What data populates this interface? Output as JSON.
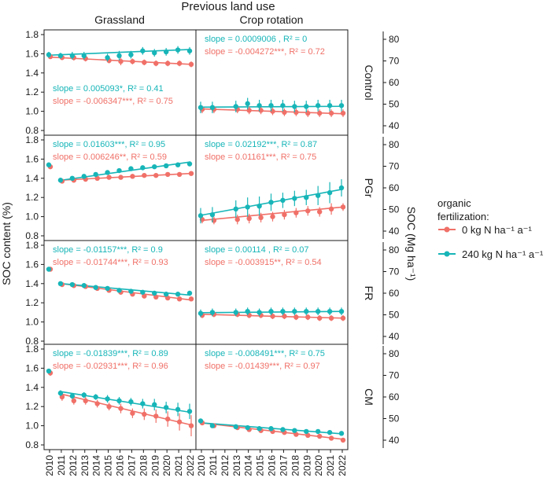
{
  "chart_data": {
    "type": "line",
    "title": "Previous land use",
    "columns": [
      "Grassland",
      "Crop rotation"
    ],
    "rows": [
      "Control",
      "PGr",
      "FR",
      "CM"
    ],
    "x": [
      2010,
      2011,
      2012,
      2013,
      2014,
      2015,
      2016,
      2017,
      2018,
      2019,
      2020,
      2021,
      2022
    ],
    "xticks": [
      "2010",
      "2011",
      "2012",
      "2013",
      "2014",
      "2015",
      "2016",
      "2017",
      "2018",
      "2019",
      "2020",
      "2021",
      "2022"
    ],
    "ylabel_left": "SOC content (%)",
    "ylabel_right": "SOC (Mg ha⁻¹)",
    "ylim": [
      0.8,
      1.8
    ],
    "yticks": [
      "0.8",
      "1.0",
      "1.2",
      "1.4",
      "1.6",
      "1.8"
    ],
    "yticks_right": [
      "40",
      "50",
      "60",
      "70",
      "80"
    ],
    "colors": {
      "n0": "#f07068",
      "n240": "#17b5b8"
    },
    "legend": {
      "title_line1": "organic",
      "title_line2": "fertilization:",
      "items": [
        "0 kg N ha⁻¹ a⁻¹",
        "240 kg N ha⁻¹ a⁻¹"
      ]
    },
    "panels": [
      {
        "row": "Control",
        "col": "Grassland",
        "ann_teal": "slope = 0.005093*, R² = 0.41",
        "ann_red": "slope = -0.006347***, R² = 0.75",
        "teal": [
          1.59,
          1.58,
          1.58,
          1.58,
          null,
          1.56,
          1.58,
          1.59,
          1.63,
          1.61,
          1.62,
          1.64,
          1.63
        ],
        "teal_err": [
          0.03,
          0.03,
          0.04,
          0.04,
          0,
          0.04,
          0.05,
          0.04,
          0.04,
          0.04,
          0.04,
          0.04,
          0.04
        ],
        "red": [
          1.57,
          1.56,
          1.56,
          1.55,
          null,
          1.53,
          1.52,
          1.52,
          1.51,
          1.5,
          1.5,
          1.5,
          1.49
        ],
        "red_err": [
          0.02,
          0.02,
          0.03,
          0.03,
          0,
          0.03,
          0.04,
          0.03,
          0.03,
          0.03,
          0.03,
          0.03,
          0.03
        ],
        "fit_teal": [
          1.585,
          1.645
        ],
        "fit_red": [
          1.565,
          1.49
        ]
      },
      {
        "row": "Control",
        "col": "Crop rotation",
        "ann_teal": "slope = 0.0009006 , R² = 0",
        "ann_red": "slope = -0.004272***, R² = 0.72",
        "teal": [
          1.04,
          1.04,
          null,
          1.05,
          1.08,
          1.06,
          1.06,
          1.06,
          1.05,
          1.05,
          1.06,
          1.06,
          1.06
        ],
        "teal_err": [
          0.06,
          0.06,
          0,
          0.06,
          0.06,
          0.06,
          0.06,
          0.06,
          0.06,
          0.06,
          0.06,
          0.06,
          0.06
        ],
        "red": [
          1.02,
          1.02,
          null,
          1.02,
          1.01,
          1.01,
          1.0,
          0.99,
          0.99,
          0.98,
          0.98,
          0.98,
          0.98
        ],
        "red_err": [
          0.04,
          0.04,
          0,
          0.04,
          0.04,
          0.04,
          0.04,
          0.04,
          0.04,
          0.04,
          0.04,
          0.04,
          0.04
        ],
        "fit_teal": [
          1.043,
          1.052
        ],
        "fit_red": [
          1.025,
          0.975
        ]
      },
      {
        "row": "PGr",
        "col": "Grassland",
        "ann_teal": "slope = 0.01603***, R² = 0.95",
        "ann_red": "slope = 0.006246**, R² = 0.59",
        "teal": [
          1.54,
          1.38,
          1.4,
          1.42,
          1.44,
          1.46,
          1.48,
          1.5,
          1.51,
          1.52,
          1.53,
          1.54,
          1.55
        ],
        "teal_err": [
          0.02,
          0.02,
          0.02,
          0.02,
          0.02,
          0.02,
          0.02,
          0.02,
          0.02,
          0.02,
          0.02,
          0.02,
          0.02
        ],
        "red": [
          1.52,
          1.37,
          1.38,
          1.39,
          1.4,
          1.41,
          1.41,
          1.42,
          1.43,
          1.43,
          1.44,
          1.44,
          1.45
        ],
        "red_err": [
          0.02,
          0.02,
          0.02,
          0.02,
          0.02,
          0.02,
          0.02,
          0.02,
          0.02,
          0.02,
          0.02,
          0.02,
          0.02
        ],
        "fit_teal": [
          1.38,
          1.57
        ],
        "fit_red": [
          1.38,
          1.45
        ],
        "fit_start": 2011
      },
      {
        "row": "PGr",
        "col": "Crop rotation",
        "ann_teal": "slope = 0.02192***, R² = 0.87",
        "ann_red": "slope = 0.01161***, R² = 0.75",
        "teal": [
          1.01,
          1.02,
          null,
          1.08,
          1.1,
          1.11,
          1.15,
          1.17,
          1.19,
          1.2,
          1.22,
          1.25,
          1.3
        ],
        "teal_err": [
          0.08,
          0.08,
          0,
          0.09,
          0.1,
          0.1,
          0.09,
          0.08,
          0.08,
          0.08,
          0.1,
          0.11,
          0.09
        ],
        "red": [
          0.97,
          0.96,
          null,
          0.97,
          0.98,
          0.99,
          1.0,
          1.02,
          1.04,
          1.06,
          1.05,
          1.08,
          1.1
        ],
        "red_err": [
          0.04,
          0.04,
          0,
          0.05,
          0.05,
          0.05,
          0.05,
          0.05,
          0.05,
          0.05,
          0.05,
          0.06,
          0.04
        ],
        "fit_teal": [
          1.015,
          1.285
        ],
        "fit_red": [
          0.96,
          1.1
        ]
      },
      {
        "row": "FR",
        "col": "Grassland",
        "ann_teal": "slope = -0.01157***, R² = 0.9",
        "ann_red": "slope = -0.01744***, R² = 0.93",
        "teal": [
          1.55,
          1.4,
          1.39,
          1.38,
          1.36,
          1.35,
          1.33,
          1.32,
          1.31,
          1.3,
          1.29,
          1.29,
          1.3
        ],
        "teal_err": [
          0.02,
          0.02,
          0.02,
          0.02,
          0.02,
          0.02,
          0.02,
          0.02,
          0.02,
          0.02,
          0.02,
          0.02,
          0.02
        ],
        "red": [
          1.55,
          1.39,
          1.38,
          1.37,
          1.35,
          1.33,
          1.31,
          1.29,
          1.27,
          1.26,
          1.25,
          1.24,
          1.24
        ],
        "red_err": [
          0.02,
          0.02,
          0.02,
          0.02,
          0.02,
          0.02,
          0.02,
          0.02,
          0.02,
          0.02,
          0.02,
          0.02,
          0.02
        ],
        "fit_teal": [
          1.4,
          1.28
        ],
        "fit_red": [
          1.4,
          1.23
        ],
        "fit_start": 2011
      },
      {
        "row": "FR",
        "col": "Crop rotation",
        "ann_teal": "slope = 0.00114 , R² = 0.07",
        "ann_red": "slope = -0.003915**, R² = 0.54",
        "teal": [
          1.09,
          1.1,
          null,
          1.1,
          1.11,
          1.1,
          1.11,
          1.11,
          1.11,
          1.11,
          1.11,
          1.11,
          1.11
        ],
        "teal_err": [
          0.04,
          0.04,
          0,
          0.04,
          0.04,
          0.04,
          0.04,
          0.04,
          0.04,
          0.04,
          0.04,
          0.04,
          0.04
        ],
        "red": [
          1.07,
          1.08,
          null,
          1.08,
          1.07,
          1.07,
          1.06,
          1.06,
          1.05,
          1.05,
          1.04,
          1.04,
          1.04
        ],
        "red_err": [
          0.03,
          0.03,
          0,
          0.03,
          0.03,
          0.03,
          0.03,
          0.03,
          0.03,
          0.03,
          0.03,
          0.03,
          0.03
        ],
        "fit_teal": [
          1.097,
          1.11
        ],
        "fit_red": [
          1.08,
          1.04
        ]
      },
      {
        "row": "CM",
        "col": "Grassland",
        "ann_teal": "slope = -0.01839***, R² = 0.89",
        "ann_red": "slope = -0.02931***, R² = 0.96",
        "teal": [
          1.57,
          1.34,
          1.31,
          1.32,
          1.3,
          1.28,
          1.26,
          1.25,
          1.23,
          1.22,
          1.19,
          1.17,
          1.15
        ],
        "teal_err": [
          0.02,
          0.03,
          0.03,
          0.03,
          0.03,
          0.04,
          0.04,
          0.04,
          0.05,
          0.06,
          0.06,
          0.07,
          0.08
        ],
        "red": [
          1.55,
          1.3,
          1.26,
          1.26,
          1.23,
          1.2,
          1.18,
          1.13,
          1.12,
          1.1,
          1.07,
          1.04,
          1.0
        ],
        "red_err": [
          0.03,
          0.04,
          0.04,
          0.04,
          0.04,
          0.04,
          0.05,
          0.05,
          0.06,
          0.07,
          0.08,
          0.09,
          0.11
        ],
        "fit_teal": [
          1.355,
          1.14
        ],
        "fit_red": [
          1.33,
          1.01
        ],
        "fit_start": 2011
      },
      {
        "row": "CM",
        "col": "Crop rotation",
        "ann_teal": "slope = -0.008491***, R² = 0.75",
        "ann_red": "slope = -0.01439***, R² = 0.97",
        "teal": [
          1.05,
          1.0,
          null,
          0.99,
          0.98,
          0.97,
          0.97,
          0.96,
          0.95,
          0.94,
          0.94,
          0.93,
          0.92
        ],
        "teal_err": [
          0.02,
          0.02,
          0,
          0.02,
          0.02,
          0.02,
          0.02,
          0.02,
          0.02,
          0.02,
          0.02,
          0.02,
          0.02
        ],
        "red": [
          1.03,
          1.0,
          null,
          0.98,
          0.96,
          0.95,
          0.94,
          0.93,
          0.91,
          0.9,
          0.89,
          0.87,
          0.85
        ],
        "red_err": [
          0.02,
          0.02,
          0,
          0.02,
          0.02,
          0.02,
          0.02,
          0.02,
          0.02,
          0.02,
          0.02,
          0.02,
          0.02
        ],
        "fit_teal": [
          1.03,
          0.915
        ],
        "fit_red": [
          1.03,
          0.86
        ]
      }
    ]
  }
}
